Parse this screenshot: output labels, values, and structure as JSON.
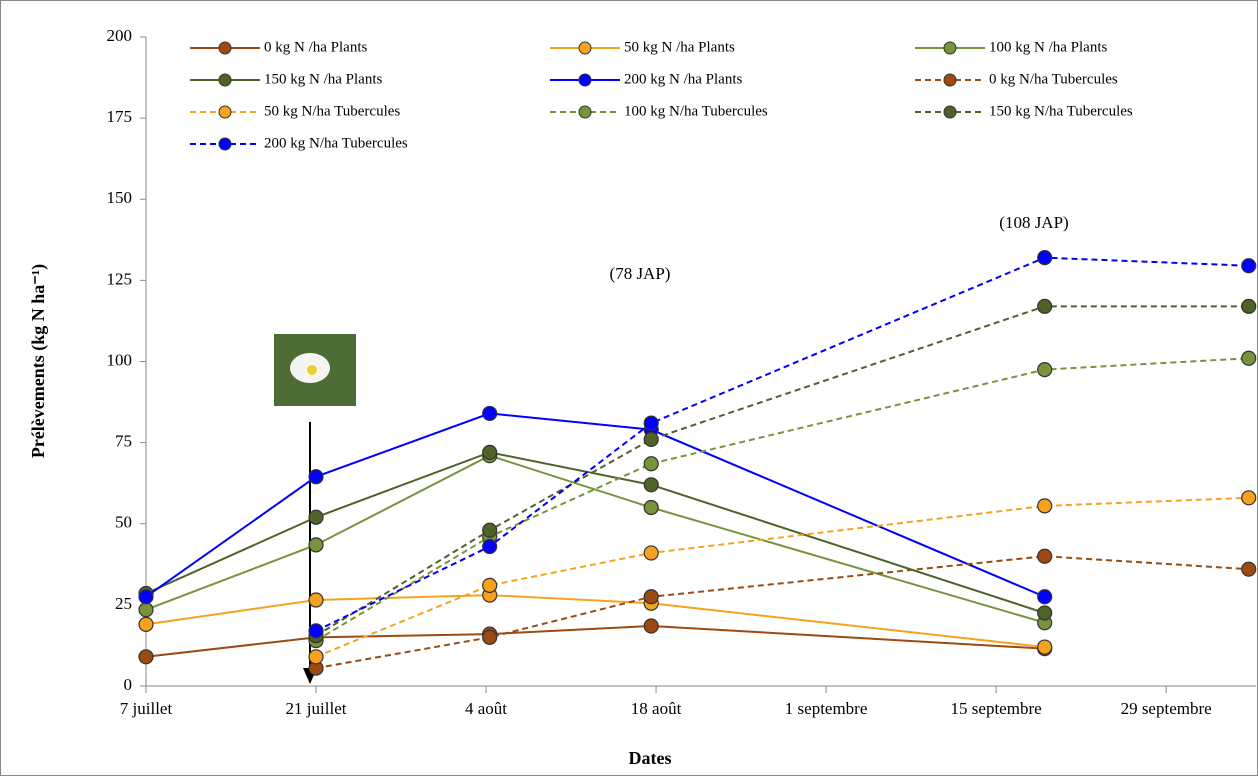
{
  "chart_data": {
    "type": "line",
    "x_label": "Dates",
    "y_label": "Prélèvements (kg N ha⁻¹)",
    "annotations": [
      "(78 JAP)",
      "(108 JAP)"
    ],
    "x": [
      0,
      14,
      28.3,
      41.6,
      74,
      90.8
    ],
    "xlim": [
      0,
      91.4
    ],
    "xticks": [
      {
        "value": 0,
        "label": "7 juillet"
      },
      {
        "value": 14,
        "label": "21 juillet"
      },
      {
        "value": 28,
        "label": "4 août"
      },
      {
        "value": 42,
        "label": "18 août"
      },
      {
        "value": 56,
        "label": "1 septembre"
      },
      {
        "value": 70,
        "label": "15 septembre"
      },
      {
        "value": 84,
        "label": "29 septembre"
      }
    ],
    "ylim": [
      0,
      200
    ],
    "yticks": [
      0,
      25,
      50,
      75,
      100,
      125,
      150,
      175,
      200
    ],
    "series": [
      {
        "name": "0 kg N /ha Plants",
        "color": "#9C4A12",
        "dashed": false,
        "values": [
          9,
          15,
          16,
          18.5,
          11.5,
          null
        ]
      },
      {
        "name": "50 kg N /ha Plants",
        "color": "#F7A21E",
        "dashed": false,
        "values": [
          19,
          26.5,
          28,
          25.5,
          12,
          null
        ]
      },
      {
        "name": "100 kg N /ha Plants",
        "color": "#77933C",
        "dashed": false,
        "values": [
          23.5,
          43.5,
          71,
          55,
          19.5,
          null
        ]
      },
      {
        "name": "150 kg N /ha Plants",
        "color": "#4F6228",
        "dashed": false,
        "values": [
          28.5,
          52,
          72,
          62,
          22.5,
          null
        ]
      },
      {
        "name": "200 kg N /ha Plants",
        "color": "#0000FF",
        "dashed": false,
        "values": [
          27.5,
          64.5,
          84,
          79,
          27.5,
          null
        ]
      },
      {
        "name": "0 kg N/ha Tubercules",
        "color": "#9C4A12",
        "dashed": true,
        "values": [
          null,
          5.5,
          15,
          27.5,
          40,
          36
        ]
      },
      {
        "name": "50 kg N/ha Tubercules",
        "color": "#F7A21E",
        "dashed": true,
        "values": [
          null,
          9,
          31,
          41,
          55.5,
          58
        ]
      },
      {
        "name": "100 kg N/ha Tubercules",
        "color": "#77933C",
        "dashed": true,
        "values": [
          null,
          14,
          46,
          68.5,
          97.5,
          101
        ]
      },
      {
        "name": "150 kg N/ha Tubercules",
        "color": "#4F6228",
        "dashed": true,
        "values": [
          null,
          15.5,
          48,
          76,
          117,
          117
        ]
      },
      {
        "name": "200 kg N/ha Tubercules",
        "color": "#0000FF",
        "dashed": true,
        "values": [
          null,
          17,
          43,
          81,
          132,
          129.5
        ]
      }
    ]
  }
}
